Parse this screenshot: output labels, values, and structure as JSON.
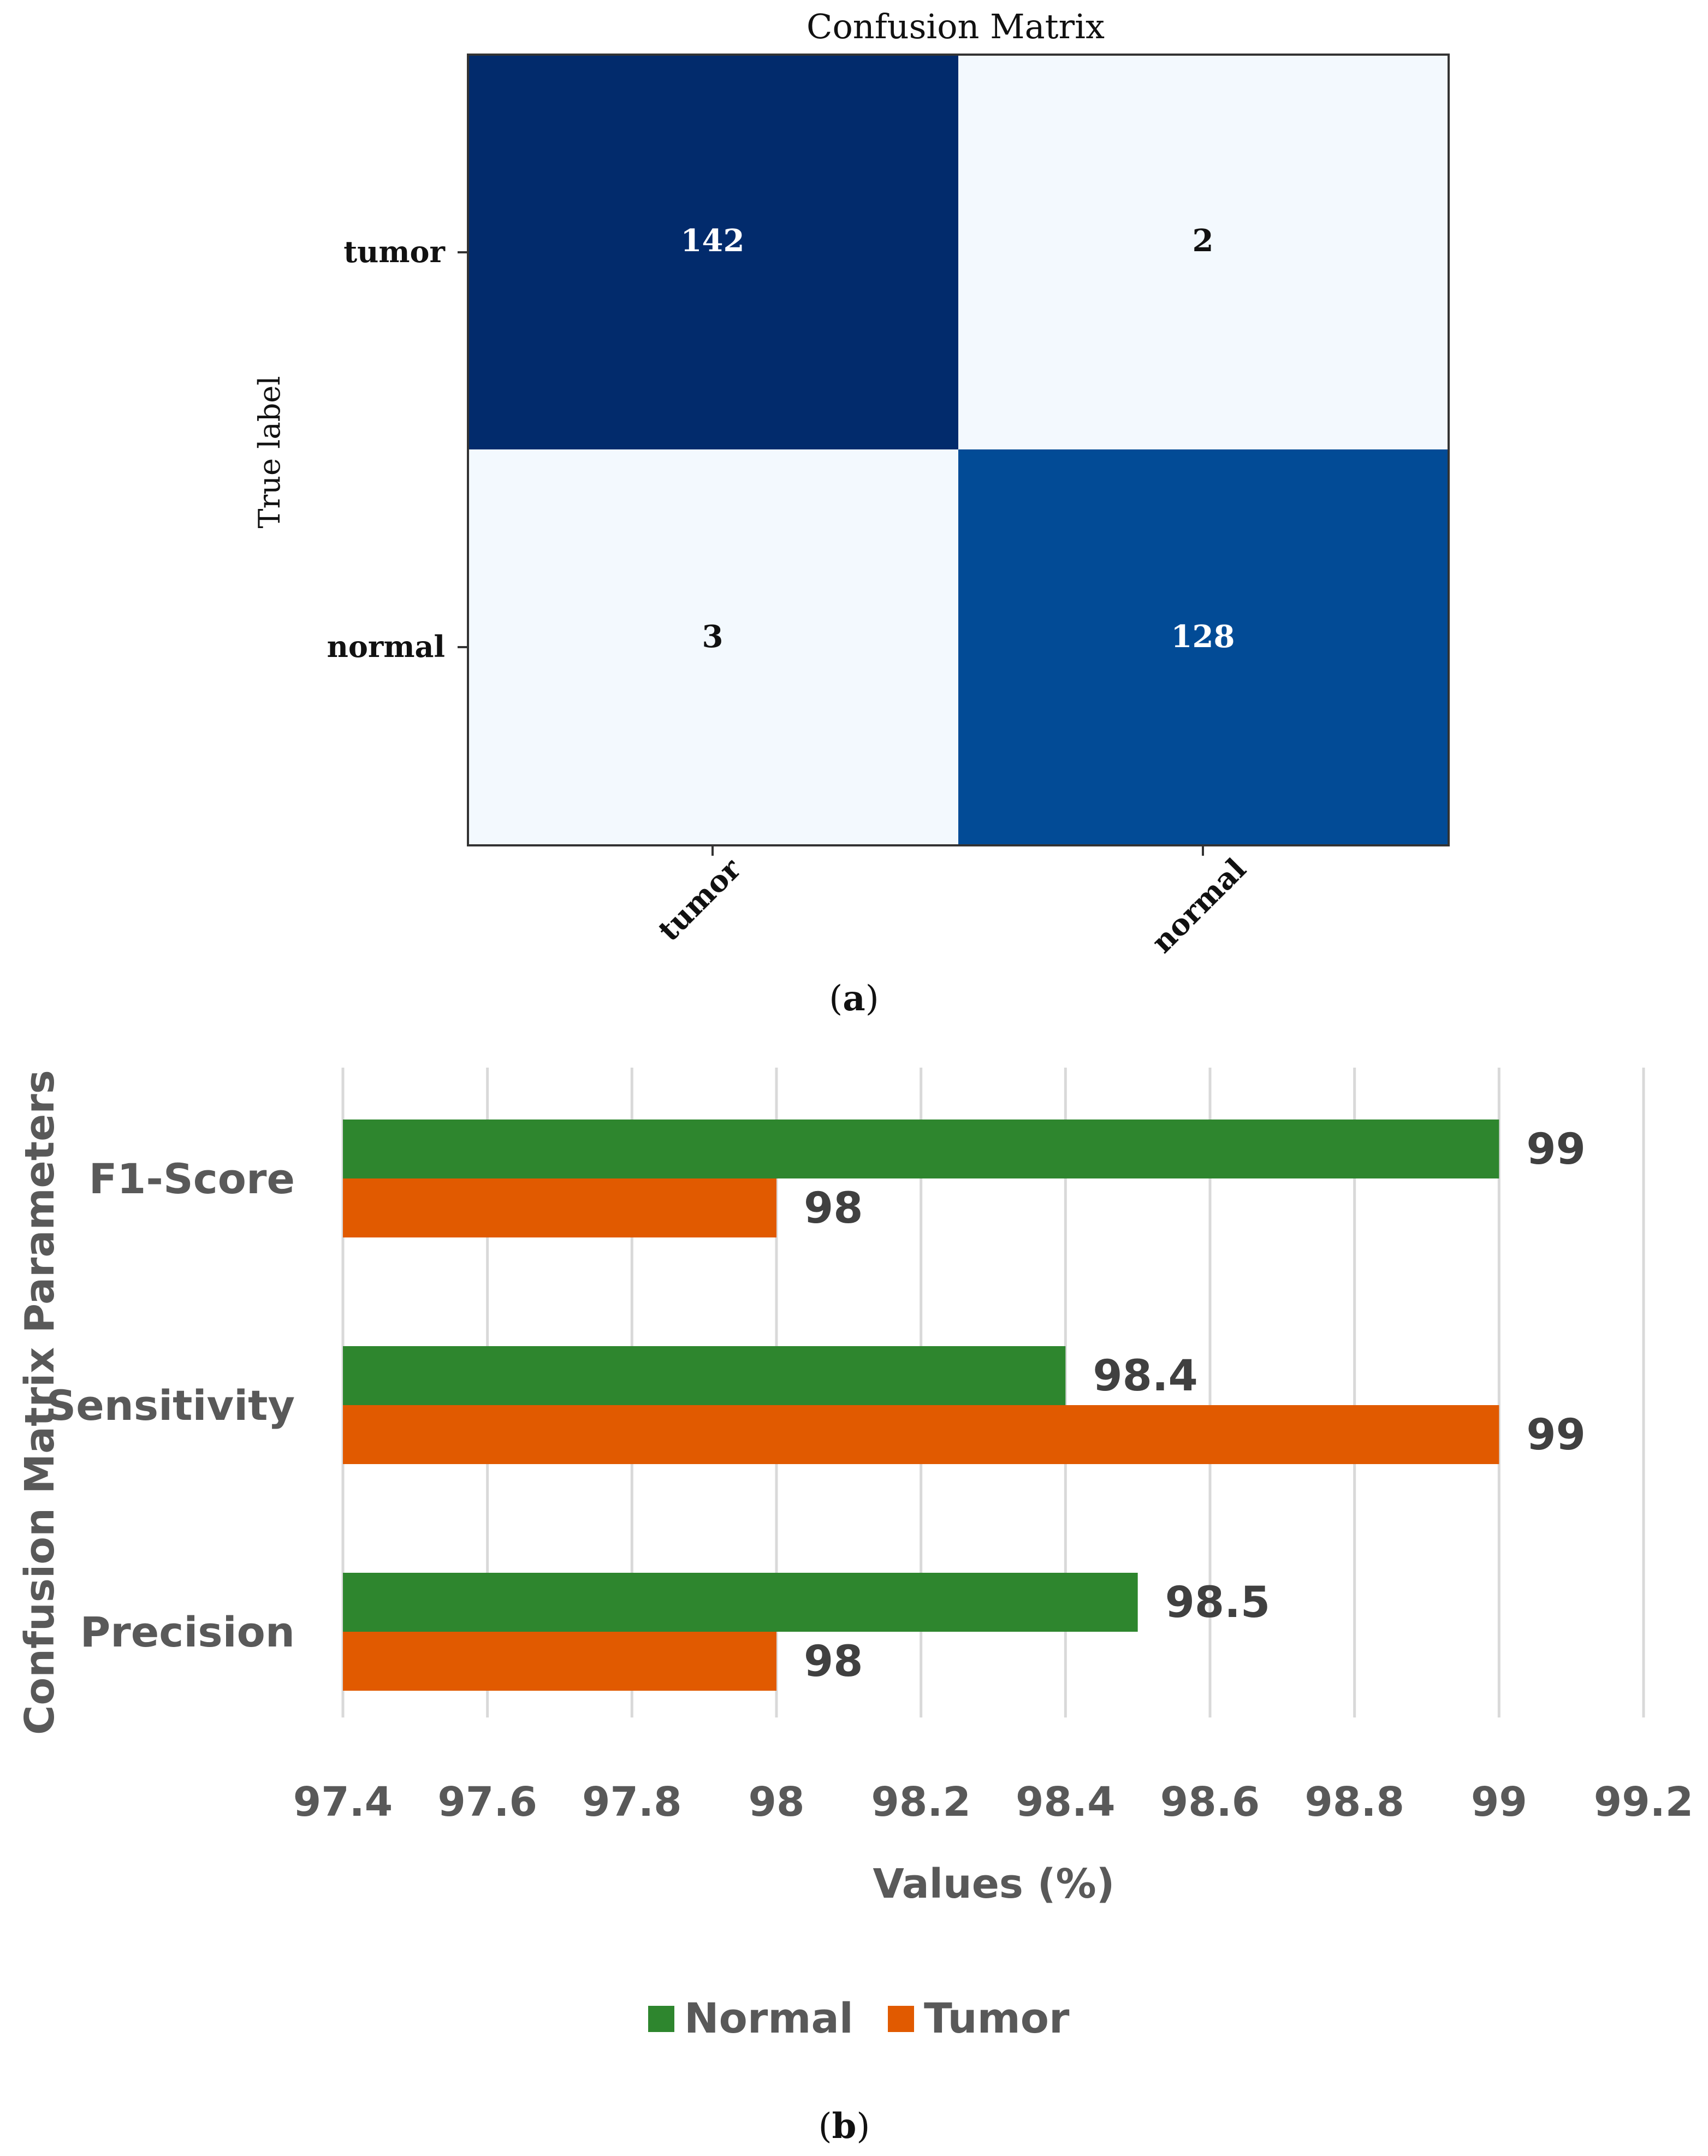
{
  "panel_a": {
    "label_open": "(",
    "label_letter": "a",
    "label_close": ")"
  },
  "panel_b": {
    "label_open": "(",
    "label_letter": "b",
    "label_close": ")"
  },
  "colors": {
    "cm_dark": "#022B6C",
    "cm_medium": "#024B96",
    "cm_light": "#F3F9FE",
    "normal": "#2E862E",
    "tumor": "#E15A00",
    "grid": "#D9D9D9",
    "axis_text": "#595959"
  },
  "chart_data": [
    {
      "type": "heatmap",
      "title": "Confusion Matrix",
      "ylabel": "True label",
      "xlabel": "",
      "row_labels": [
        "tumor",
        "normal"
      ],
      "col_labels": [
        "tumor",
        "normal"
      ],
      "matrix": [
        [
          142,
          2
        ],
        [
          3,
          128
        ]
      ]
    },
    {
      "type": "bar",
      "orientation": "horizontal",
      "categories": [
        "F1-Score",
        "Sensitivity",
        "Precision"
      ],
      "series": [
        {
          "name": "Normal",
          "values": [
            99,
            98.4,
            98.5
          ],
          "labels": [
            "99",
            "98.4",
            "98.5"
          ]
        },
        {
          "name": "Tumor",
          "values": [
            98,
            99,
            98
          ],
          "labels": [
            "98",
            "99",
            "98"
          ]
        }
      ],
      "xlabel": "Values (%)",
      "ylabel": "Confusion Matrix Parameters",
      "xlim": [
        97.4,
        99.2
      ],
      "xticks": [
        "97.4",
        "97.6",
        "97.8",
        "98",
        "98.2",
        "98.4",
        "98.6",
        "98.8",
        "99",
        "99.2"
      ],
      "grid": true,
      "legend": "bottom"
    }
  ]
}
